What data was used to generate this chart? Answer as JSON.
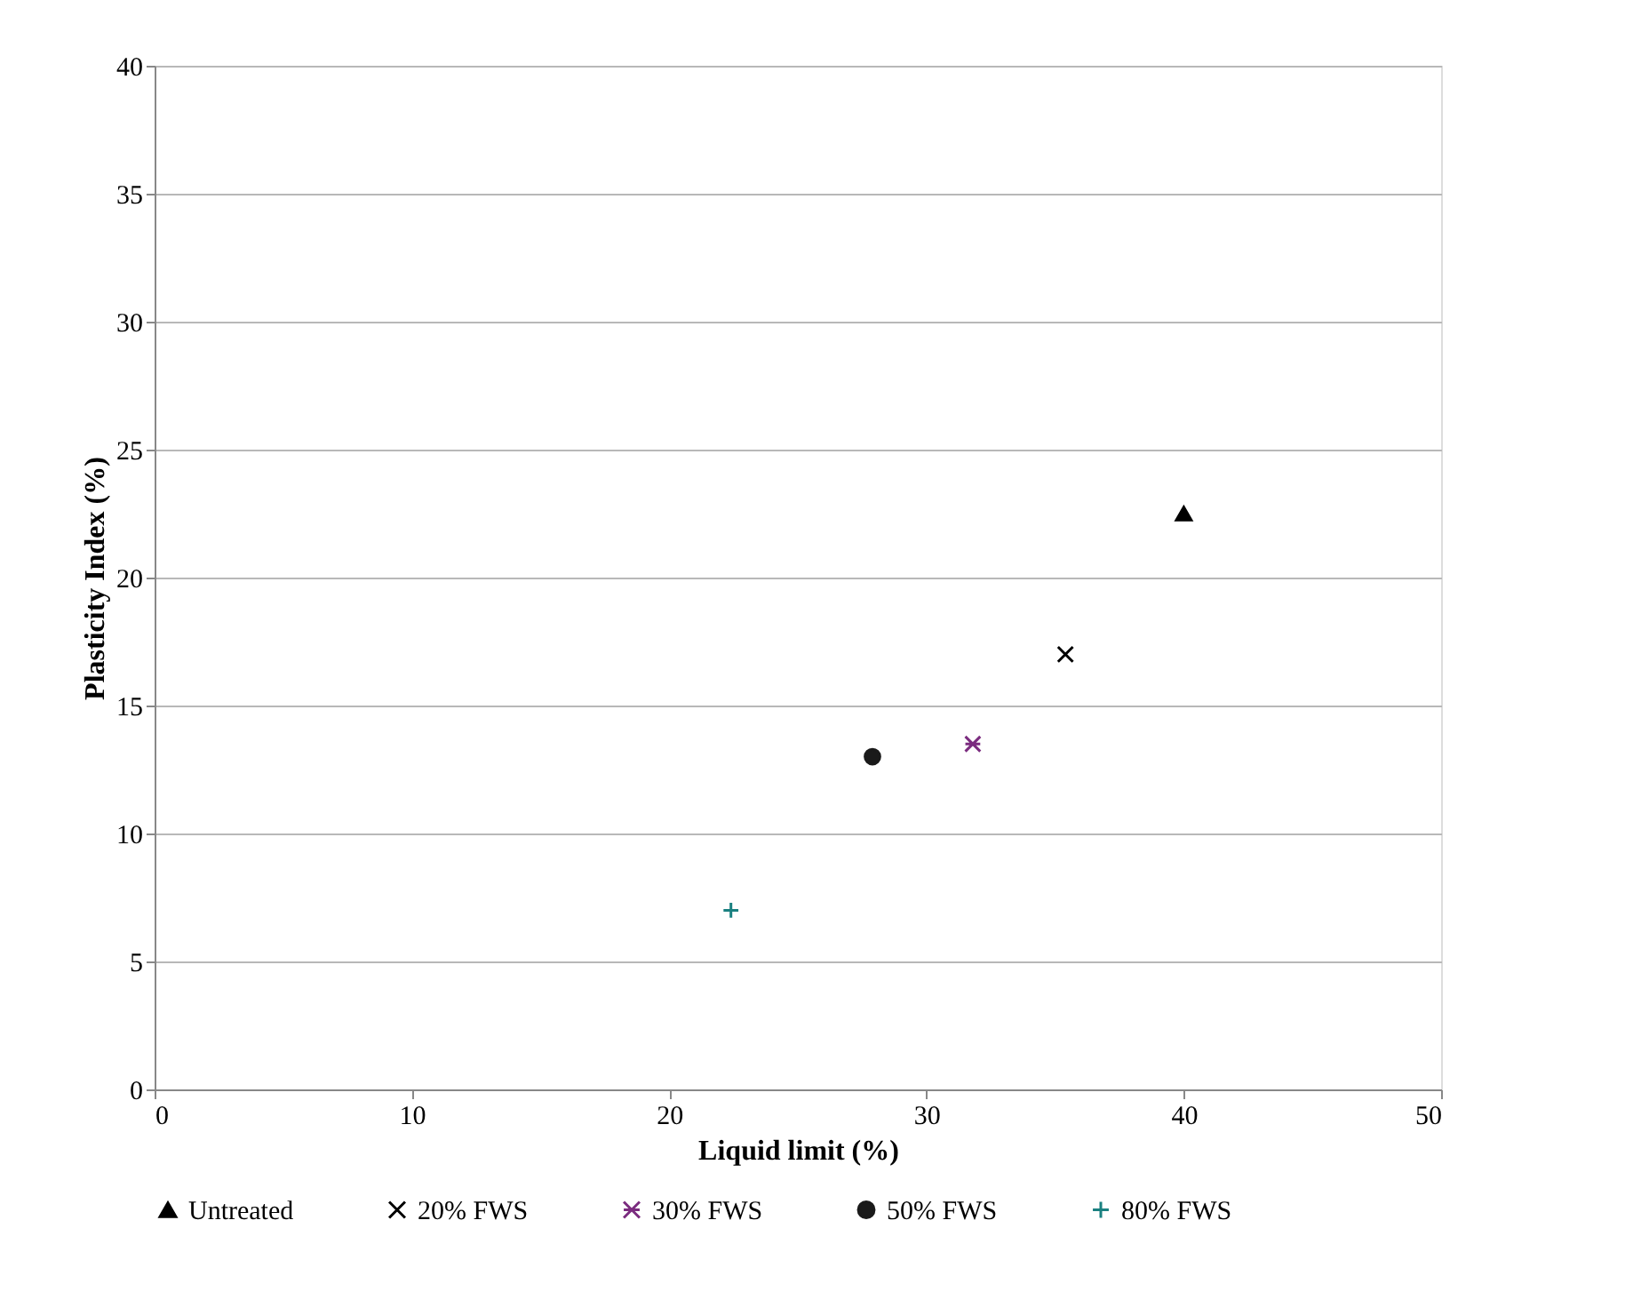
{
  "chart_data": {
    "type": "scatter",
    "xlabel": "Liquid limit (%)",
    "ylabel": "Plasticity Index (%)",
    "xlim": [
      0,
      50
    ],
    "xticks": [
      0,
      10,
      20,
      30,
      40,
      50
    ],
    "ylim": [
      0,
      40
    ],
    "yticks": [
      0,
      5,
      10,
      15,
      20,
      25,
      30,
      35,
      40
    ],
    "grid": "y",
    "legend": "bottom",
    "series": [
      {
        "name": "Untreated",
        "color": "#000000",
        "marker": "triangle",
        "x": [
          40.0
        ],
        "values": [
          22.5
        ]
      },
      {
        "name": "20% FWS",
        "color": "#000000",
        "marker": "x",
        "x": [
          35.4
        ],
        "values": [
          17.0
        ]
      },
      {
        "name": "30% FWS",
        "color": "#7b2c7f",
        "x": [
          31.8
        ],
        "values": [
          13.5
        ]
      },
      {
        "name": "50% FWS",
        "color": "#1a1a1a",
        "marker": "circle",
        "x": [
          27.9
        ],
        "values": [
          13.0
        ]
      },
      {
        "name": "80% FWS",
        "color": "#1a8080",
        "marker": "cross",
        "x": [
          22.4
        ],
        "values": [
          7.0
        ]
      }
    ]
  }
}
